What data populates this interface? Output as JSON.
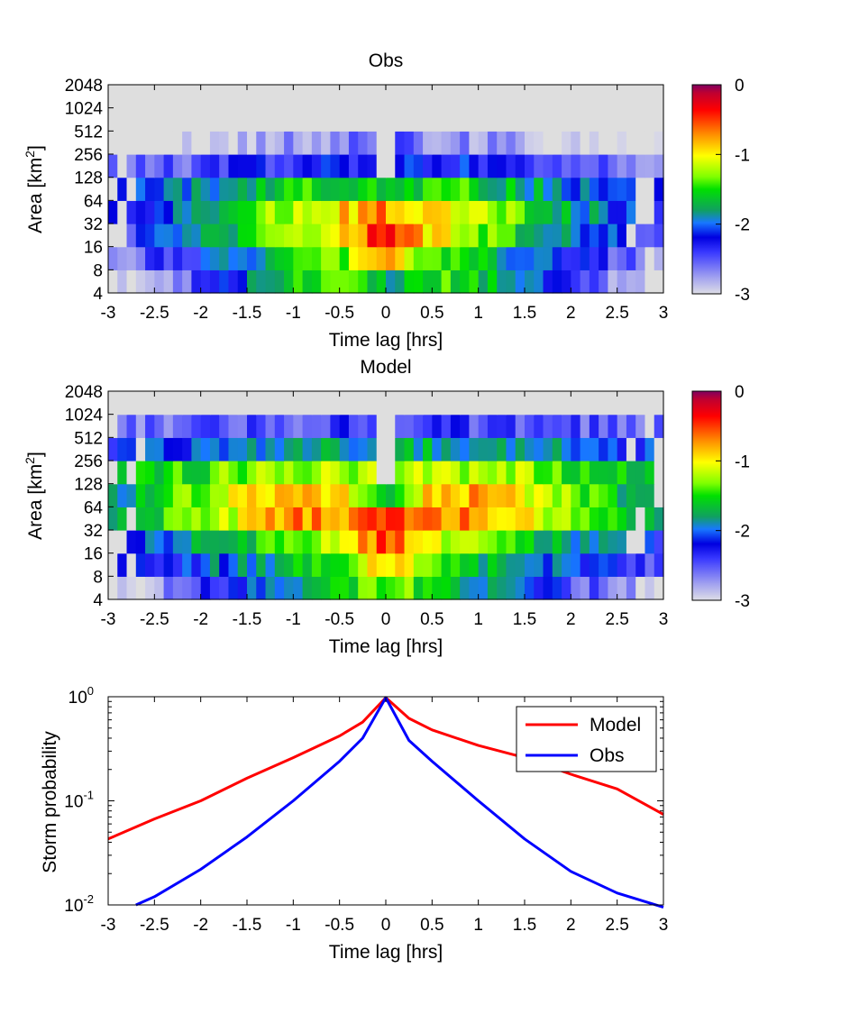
{
  "figure": {
    "panels": [
      "obs",
      "model"
    ]
  },
  "chart_data": [
    {
      "id": "obs",
      "type": "heatmap",
      "title": "Obs",
      "xlabel": "Time lag [hrs]",
      "ylabel": "Area [km²]",
      "ylabel_text": "Area [km",
      "ylabel_sup": "2",
      "ylabel_close": "]",
      "xlim": [
        -3,
        3
      ],
      "xticks": [
        "-3",
        "-2.5",
        "-2",
        "-1.5",
        "-1",
        "-0.5",
        "0",
        "0.5",
        "1",
        "1.5",
        "2",
        "2.5",
        "3"
      ],
      "yticks": [
        "4",
        "8",
        "16",
        "32",
        "64",
        "128",
        "256",
        "512",
        "1024",
        "2048"
      ],
      "colorbar": {
        "ticks": [
          "0",
          "-1",
          "-2",
          "-3"
        ],
        "range": [
          -3,
          0
        ]
      },
      "ncols": 60,
      "rows": [
        {
          "area": "4-8",
          "center": -1.7,
          "lo": -3.2,
          "hi": -1.5,
          "flat": 0.9
        },
        {
          "area": "8-16",
          "center": -0.6,
          "lo": -2.8,
          "hi": -1.4,
          "flat": 0.6
        },
        {
          "area": "16-32",
          "center": -0.3,
          "lo": -2.5,
          "hi": -1.0,
          "flat": 0.5
        },
        {
          "area": "32-64",
          "center": -0.7,
          "lo": -2.4,
          "hi": -0.9,
          "flat": 0.6
        },
        {
          "area": "64-128",
          "center": -1.6,
          "lo": -2.3,
          "hi": -1.5,
          "flat": 0.8
        },
        {
          "area": "128-256",
          "center": -9,
          "lo": -2.7,
          "hi": -2.2,
          "flat": 0.7
        },
        {
          "area": "256-512",
          "center": -9,
          "lo": -3.2,
          "hi": -2.6,
          "flat": 0.4
        },
        {
          "area": "512-1024",
          "center": -9,
          "lo": -9,
          "hi": -9,
          "flat": 0
        },
        {
          "area": "1024-2048",
          "center": -9,
          "lo": -9,
          "hi": -9,
          "flat": 0
        }
      ]
    },
    {
      "id": "model",
      "type": "heatmap",
      "title": "Model",
      "xlabel": "Time lag [hrs]",
      "ylabel": "Area [km²]",
      "ylabel_text": "Area [km",
      "ylabel_sup": "2",
      "ylabel_close": "]",
      "xlim": [
        -3,
        3
      ],
      "xticks": [
        "-3",
        "-2.5",
        "-2",
        "-1.5",
        "-1",
        "-0.5",
        "0",
        "0.5",
        "1",
        "1.5",
        "2",
        "2.5",
        "3"
      ],
      "yticks": [
        "4",
        "8",
        "16",
        "32",
        "64",
        "128",
        "256",
        "512",
        "1024",
        "2048"
      ],
      "colorbar": {
        "ticks": [
          "0",
          "-1",
          "-2",
          "-3"
        ],
        "range": [
          -3,
          0
        ]
      },
      "ncols": 60,
      "rows": [
        {
          "area": "4-8",
          "center": -1.3,
          "lo": -3.0,
          "hi": -1.5,
          "flat": 0.4
        },
        {
          "area": "8-16",
          "center": -0.9,
          "lo": -2.5,
          "hi": -1.4,
          "flat": 0.4
        },
        {
          "area": "16-32",
          "center": -0.5,
          "lo": -2.3,
          "hi": -1.1,
          "flat": 0.5
        },
        {
          "area": "32-64",
          "center": -0.4,
          "lo": -1.9,
          "hi": -0.7,
          "flat": 1.0
        },
        {
          "area": "64-128",
          "center": -1.8,
          "lo": -1.9,
          "hi": -0.8,
          "flat": 1.2
        },
        {
          "area": "128-256",
          "center": -9,
          "lo": -1.8,
          "hi": -1.2,
          "flat": 1.3
        },
        {
          "area": "256-512",
          "center": -9,
          "lo": -2.2,
          "hi": -1.8,
          "flat": 0.9
        },
        {
          "area": "512-1024",
          "center": -9,
          "lo": -2.6,
          "hi": -2.4,
          "flat": 0.3
        },
        {
          "area": "1024-2048",
          "center": -9,
          "lo": -9,
          "hi": -9,
          "flat": 0
        }
      ]
    },
    {
      "id": "prob",
      "type": "line",
      "title": "",
      "xlabel": "Time lag [hrs]",
      "ylabel": "Storm probability",
      "xlim": [
        -3,
        3
      ],
      "ylim": [
        0.01,
        1
      ],
      "yscale": "log",
      "xticks": [
        "-3",
        "-2.5",
        "-2",
        "-1.5",
        "-1",
        "-0.5",
        "0",
        "0.5",
        "1",
        "1.5",
        "2",
        "2.5",
        "3"
      ],
      "yticks": [
        {
          "base": "10",
          "exp": "0"
        },
        {
          "base": "10",
          "exp": "-1"
        },
        {
          "base": "10",
          "exp": "-2"
        }
      ],
      "legend": {
        "position": "top-right"
      },
      "series": [
        {
          "name": "Model",
          "color": "#ff0000",
          "x": [
            -3,
            -2.5,
            -2,
            -1.5,
            -1,
            -0.5,
            -0.25,
            0,
            0.25,
            0.5,
            1,
            1.5,
            2,
            2.5,
            3
          ],
          "y": [
            0.043,
            0.067,
            0.1,
            0.165,
            0.26,
            0.42,
            0.57,
            0.98,
            0.62,
            0.48,
            0.34,
            0.26,
            0.18,
            0.13,
            0.074
          ]
        },
        {
          "name": "Obs",
          "color": "#0000ff",
          "x": [
            -2.7,
            -2.5,
            -2,
            -1.5,
            -1,
            -0.5,
            -0.25,
            0,
            0.25,
            0.5,
            1,
            1.5,
            2,
            2.5,
            3
          ],
          "y": [
            0.01,
            0.012,
            0.022,
            0.045,
            0.1,
            0.24,
            0.4,
            0.98,
            0.38,
            0.24,
            0.1,
            0.043,
            0.021,
            0.013,
            0.0095
          ]
        }
      ]
    }
  ]
}
